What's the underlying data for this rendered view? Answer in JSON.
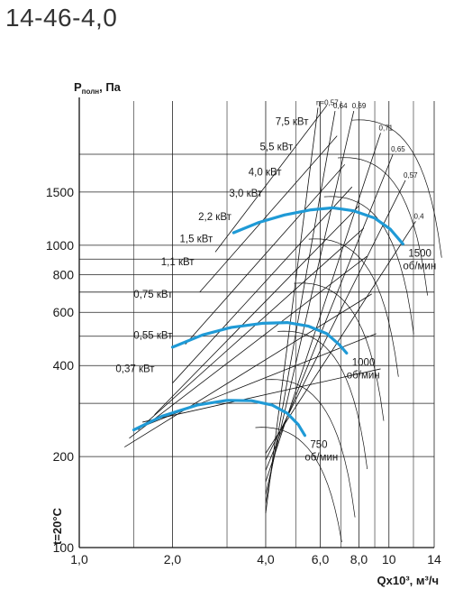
{
  "title": "14-46-4,0",
  "chart_data": {
    "type": "line",
    "ylabel_main": "P",
    "ylabel_sub": "полн",
    "ylabel_unit": ", Па",
    "xlabel": "Qx10³, м³/ч",
    "temperature_label": "t=20°C",
    "x_scale": "log",
    "y_scale": "log",
    "xlim": [
      1,
      14
    ],
    "ylim": [
      100,
      3000
    ],
    "x_ticks": [
      {
        "value": 1,
        "label": "1,0"
      },
      {
        "value": 2,
        "label": "2,0"
      },
      {
        "value": 4,
        "label": "4,0"
      },
      {
        "value": 6,
        "label": "6,0"
      },
      {
        "value": 8,
        "label": "8,0"
      },
      {
        "value": 10,
        "label": "10"
      },
      {
        "value": 14,
        "label": "14"
      }
    ],
    "y_ticks": [
      {
        "value": 100,
        "label": "100"
      },
      {
        "value": 200,
        "label": "200"
      },
      {
        "value": 400,
        "label": "400"
      },
      {
        "value": 600,
        "label": "600"
      },
      {
        "value": 800,
        "label": "800"
      },
      {
        "value": 1000,
        "label": "1000"
      },
      {
        "value": 1500,
        "label": "1500"
      }
    ],
    "grid": true,
    "series": [
      {
        "name": "1500 об/мин",
        "label_line1": "1500",
        "label_line2": "об/мин",
        "color": "#1f9ad6",
        "points": [
          [
            3.15,
            1100
          ],
          [
            3.8,
            1190
          ],
          [
            4.6,
            1260
          ],
          [
            5.6,
            1310
          ],
          [
            6.6,
            1330
          ],
          [
            7.7,
            1300
          ],
          [
            9.0,
            1230
          ],
          [
            10.1,
            1130
          ],
          [
            11.1,
            1010
          ]
        ]
      },
      {
        "name": "1000 об/мин",
        "label_line1": "1000",
        "label_line2": "об/мин",
        "color": "#1f9ad6",
        "points": [
          [
            2.0,
            460
          ],
          [
            2.5,
            505
          ],
          [
            3.1,
            535
          ],
          [
            3.9,
            552
          ],
          [
            4.7,
            555
          ],
          [
            5.5,
            540
          ],
          [
            6.3,
            510
          ],
          [
            6.9,
            470
          ],
          [
            7.3,
            440
          ]
        ]
      },
      {
        "name": "750 об/мин",
        "label_line1": "750",
        "label_line2": "об/мин",
        "color": "#1f9ad6",
        "points": [
          [
            1.5,
            245
          ],
          [
            1.85,
            272
          ],
          [
            2.4,
            296
          ],
          [
            3.0,
            307
          ],
          [
            3.6,
            306
          ],
          [
            4.2,
            296
          ],
          [
            4.7,
            278
          ],
          [
            5.1,
            255
          ],
          [
            5.35,
            235
          ]
        ]
      }
    ],
    "power_lines": [
      {
        "label": "7,5 кВт",
        "points": [
          [
            6.3,
            2900
          ],
          [
            2.75,
            950
          ]
        ]
      },
      {
        "label": "5,5 кВт",
        "points": [
          [
            6.8,
            2300
          ],
          [
            2.45,
            700
          ]
        ]
      },
      {
        "label": "4,0 кВт",
        "points": [
          [
            7.2,
            1850
          ],
          [
            2.2,
            470
          ]
        ]
      },
      {
        "label": "3,0 кВт",
        "points": [
          [
            7.6,
            1560
          ],
          [
            2.0,
            350
          ]
        ]
      },
      {
        "label": "2,2 кВт",
        "points": [
          [
            8.0,
            1350
          ],
          [
            1.75,
            275
          ]
        ]
      },
      {
        "label": "1,5 кВт",
        "points": [
          [
            8.3,
            1140
          ],
          [
            1.55,
            245
          ]
        ]
      },
      {
        "label": "1,1 кВт",
        "points": [
          [
            8.5,
            920
          ],
          [
            1.45,
            230
          ]
        ]
      },
      {
        "label": "0,75 кВт",
        "points": [
          [
            8.8,
            690
          ],
          [
            1.4,
            215
          ]
        ]
      },
      {
        "label": "0,55 кВт",
        "points": [
          [
            9.1,
            510
          ],
          [
            1.5,
            245
          ]
        ]
      },
      {
        "label": "0,37 кВт",
        "points": [
          [
            9.4,
            390
          ],
          [
            1.6,
            260
          ]
        ]
      }
    ],
    "power_label_anchor": [
      [
        5.5,
        2500
      ],
      [
        4.9,
        2060
      ],
      [
        4.5,
        1700
      ],
      [
        3.9,
        1450
      ],
      [
        3.1,
        1210
      ],
      [
        2.7,
        1025
      ],
      [
        2.35,
        860
      ],
      [
        2.0,
        670
      ],
      [
        2.0,
        490
      ],
      [
        1.75,
        380
      ]
    ],
    "efficiency_lines": [
      {
        "label": "η=0,57",
        "points": [
          [
            5.9,
            2850
          ],
          [
            4.0,
            130
          ]
        ]
      },
      {
        "label": "0,64",
        "points": [
          [
            6.7,
            2780
          ],
          [
            4.0,
            140
          ]
        ]
      },
      {
        "label": "0,69",
        "points": [
          [
            7.7,
            2780
          ],
          [
            4.0,
            150
          ]
        ]
      },
      {
        "label": "0,71",
        "points": [
          [
            9.4,
            2350
          ],
          [
            4.0,
            165
          ]
        ]
      },
      {
        "label": "0,65",
        "points": [
          [
            10.3,
            2000
          ],
          [
            4.0,
            180
          ]
        ]
      },
      {
        "label": "0,57",
        "points": [
          [
            11.3,
            1640
          ],
          [
            4.0,
            195
          ]
        ]
      },
      {
        "label": "0,4",
        "points": [
          [
            12.2,
            1200
          ],
          [
            4.0,
            205
          ]
        ]
      }
    ]
  }
}
